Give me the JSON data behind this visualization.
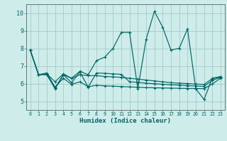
{
  "xlabel": "Humidex (Indice chaleur)",
  "xlim": [
    -0.5,
    23.5
  ],
  "ylim": [
    4.5,
    10.5
  ],
  "yticks": [
    5,
    6,
    7,
    8,
    9,
    10
  ],
  "xticks": [
    0,
    1,
    2,
    3,
    4,
    5,
    6,
    7,
    8,
    9,
    10,
    11,
    12,
    13,
    14,
    15,
    16,
    17,
    18,
    19,
    20,
    21,
    22,
    23
  ],
  "bg_color": "#ceecea",
  "grid_color": "#aacfcb",
  "line_color": "#006666",
  "series": [
    [
      7.9,
      6.5,
      6.5,
      5.7,
      6.5,
      6.3,
      6.7,
      6.5,
      7.3,
      7.5,
      8.0,
      8.9,
      8.9,
      5.7,
      8.5,
      10.1,
      9.2,
      7.9,
      8.0,
      9.1,
      5.7,
      5.1,
      6.3,
      6.4
    ],
    [
      7.9,
      6.5,
      6.55,
      6.1,
      6.55,
      6.3,
      6.5,
      6.45,
      6.45,
      6.4,
      6.38,
      6.35,
      6.3,
      6.25,
      6.2,
      6.15,
      6.1,
      6.05,
      6.02,
      6.0,
      5.97,
      5.95,
      6.28,
      6.38
    ],
    [
      7.9,
      6.5,
      6.55,
      5.8,
      6.3,
      5.95,
      6.1,
      5.82,
      5.9,
      5.87,
      5.85,
      5.83,
      5.81,
      5.79,
      5.77,
      5.76,
      5.75,
      5.74,
      5.73,
      5.72,
      5.72,
      5.71,
      5.98,
      6.3
    ],
    [
      7.9,
      6.5,
      6.6,
      5.75,
      6.5,
      6.05,
      6.65,
      5.8,
      6.6,
      6.58,
      6.55,
      6.52,
      6.1,
      6.07,
      6.02,
      5.99,
      5.96,
      5.93,
      5.91,
      5.88,
      5.86,
      5.84,
      6.18,
      6.35
    ]
  ]
}
